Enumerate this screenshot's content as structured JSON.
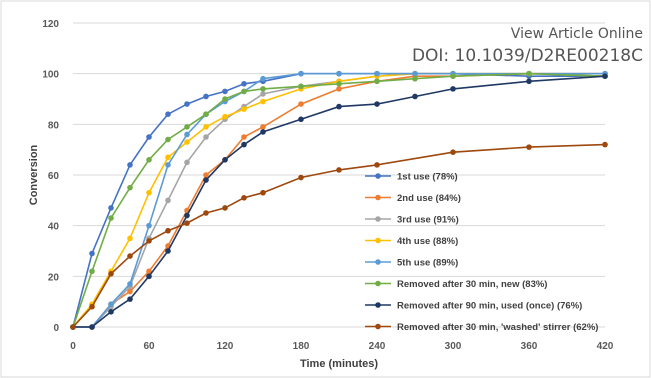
{
  "watermark": {
    "line1": "View Article Online",
    "line2": "DOI: 10.1039/D2RE00218C"
  },
  "chart_data": {
    "type": "line",
    "xlabel": "Time (minutes)",
    "ylabel": "Conversion",
    "xlim": [
      0,
      420
    ],
    "ylim": [
      0,
      120
    ],
    "xticks": [
      0,
      60,
      120,
      180,
      240,
      300,
      360,
      420
    ],
    "yticks": [
      0,
      20,
      40,
      60,
      80,
      100,
      120
    ],
    "grid": "horizontal",
    "legend_position": "right",
    "series": [
      {
        "name": "1st use (78%)",
        "color": "#4472C4",
        "x": [
          0,
          15,
          30,
          45,
          60,
          75,
          90,
          105,
          120,
          135,
          150,
          180,
          210,
          240,
          270,
          300,
          360,
          420
        ],
        "y": [
          0,
          29,
          47,
          64,
          75,
          84,
          88,
          91,
          93,
          96,
          97,
          100,
          100,
          100,
          100,
          100,
          99,
          99
        ]
      },
      {
        "name": "2nd use (84%)",
        "color": "#ED7D31",
        "x": [
          0,
          15,
          30,
          45,
          60,
          75,
          90,
          105,
          120,
          135,
          150,
          180,
          210,
          240,
          270,
          300,
          360,
          420
        ],
        "y": [
          0,
          0,
          9,
          14,
          22,
          32,
          46,
          60,
          66,
          75,
          79,
          88,
          94,
          97,
          99,
          99,
          100,
          100
        ]
      },
      {
        "name": "3rd use (91%)",
        "color": "#A5A5A5",
        "x": [
          0,
          15,
          30,
          45,
          60,
          75,
          90,
          105,
          120,
          135,
          150,
          180,
          210,
          240,
          270,
          300,
          360,
          420
        ],
        "y": [
          0,
          0,
          8,
          16,
          35,
          50,
          65,
          75,
          82,
          87,
          92,
          95,
          97,
          99,
          100,
          100,
          100,
          100
        ]
      },
      {
        "name": "4th use (88%)",
        "color": "#FFC000",
        "x": [
          0,
          15,
          30,
          45,
          60,
          75,
          90,
          105,
          120,
          135,
          150,
          180,
          210,
          240,
          270,
          300,
          360,
          420
        ],
        "y": [
          0,
          9,
          22,
          35,
          53,
          67,
          73,
          79,
          83,
          86,
          89,
          94,
          97,
          99,
          100,
          100,
          100,
          99
        ]
      },
      {
        "name": "5th use (89%)",
        "color": "#5B9BD5",
        "x": [
          0,
          15,
          30,
          45,
          60,
          75,
          90,
          105,
          120,
          135,
          150,
          180,
          210,
          240,
          270,
          300,
          360,
          420
        ],
        "y": [
          0,
          0,
          9,
          17,
          40,
          64,
          76,
          84,
          89,
          93,
          98,
          100,
          100,
          100,
          100,
          100,
          100,
          100
        ]
      },
      {
        "name": "Removed after 30 min, new (83%)",
        "color": "#70AD47",
        "x": [
          0,
          15,
          30,
          45,
          60,
          75,
          90,
          105,
          120,
          135,
          150,
          180,
          210,
          240,
          270,
          300,
          360,
          420
        ],
        "y": [
          0,
          22,
          43,
          55,
          66,
          74,
          79,
          84,
          90,
          93,
          94,
          95,
          96,
          97,
          98,
          99,
          100,
          99
        ]
      },
      {
        "name": "Removed after 90 min, used (once) (76%)",
        "color": "#1F3864",
        "x": [
          0,
          15,
          30,
          45,
          60,
          75,
          90,
          105,
          120,
          135,
          150,
          180,
          210,
          240,
          270,
          300,
          360,
          420
        ],
        "y": [
          0,
          0,
          6,
          11,
          20,
          30,
          44,
          58,
          66,
          72,
          77,
          82,
          87,
          88,
          91,
          94,
          97,
          99
        ]
      },
      {
        "name": "Removed after 30 min, 'washed' stirrer (62%)",
        "color": "#9E480E",
        "x": [
          0,
          15,
          30,
          45,
          60,
          75,
          90,
          105,
          120,
          135,
          150,
          180,
          210,
          240,
          300,
          360,
          420
        ],
        "y": [
          0,
          8,
          21,
          28,
          34,
          38,
          41,
          45,
          47,
          51,
          53,
          59,
          62,
          64,
          69,
          71,
          72
        ]
      }
    ]
  }
}
